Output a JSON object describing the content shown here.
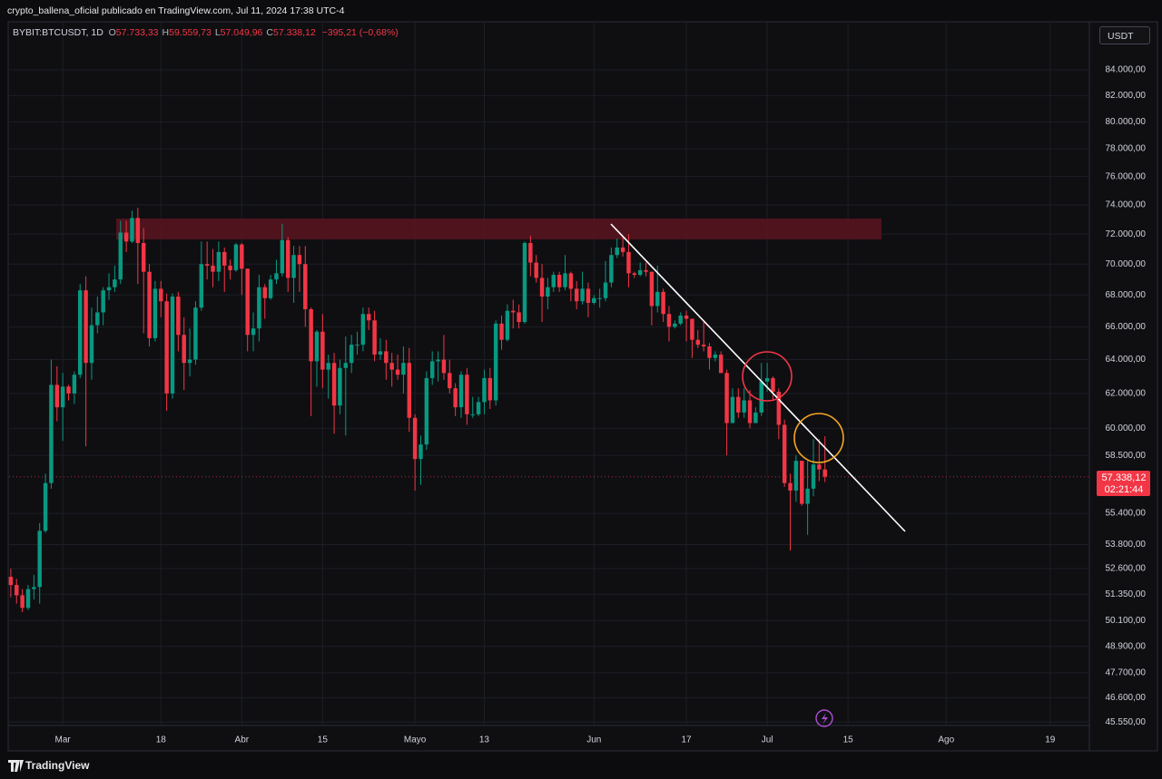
{
  "header": {
    "publisher": "crypto_ballena_oficial publicado en TradingView.com, Jul 11, 2024 17:38 UTC-4",
    "symbol": "BYBIT:BTCUSDT, 1D",
    "ohlc": [
      {
        "key": "O",
        "label": "57.733,33"
      },
      {
        "key": "H",
        "label": "59.559,73"
      },
      {
        "key": "L",
        "label": "57.049,96"
      },
      {
        "key": "C",
        "label": "57.338,12"
      }
    ],
    "change": "−395,21 (−0,68%)"
  },
  "currency": "USDT",
  "price_tag": {
    "price": "57.338,12",
    "countdown": "02:21:44"
  },
  "brand": "TradingView",
  "chart_data": {
    "type": "candlestick",
    "log_scale": true,
    "grid": true,
    "up_color": "#089981",
    "down_color": "#f23645",
    "open": [
      52200,
      51800,
      51300,
      50700,
      51600,
      51700,
      54500,
      57000,
      62500,
      61200,
      62400,
      62000,
      63100,
      68300,
      63800,
      66100,
      66900,
      68300,
      68500,
      69000,
      72100,
      71500,
      73100,
      71400,
      69500,
      65300,
      68400,
      67600,
      62000,
      67900,
      65500,
      63800,
      64000,
      67200,
      70000,
      69900,
      69500,
      70800,
      69900,
      69600,
      71300,
      69700,
      65500,
      65900,
      68500,
      67800,
      69000,
      69400,
      71600,
      69100,
      70600,
      70000,
      67100,
      63900,
      65700,
      63400,
      63800,
      61300,
      63500,
      63800,
      64900,
      64900,
      66800,
      66400,
      64300,
      64500,
      63800,
      63400,
      63100,
      63800,
      60600,
      58300,
      59100,
      62900,
      63900,
      64000,
      63200,
      62300,
      61200,
      63100,
      60800,
      60800,
      61500,
      62900,
      61600,
      66200,
      65200,
      67000,
      66900,
      66300,
      71400,
      70100,
      69100,
      67900,
      68500,
      69300,
      68500,
      69400,
      68400,
      67600,
      68400,
      67500,
      67800,
      67800,
      68800,
      70600,
      71100,
      70800,
      69400,
      69300,
      69600,
      69500,
      67300,
      68200,
      66800,
      66000,
      66200,
      66700,
      66500,
      65200,
      64900,
      64800,
      64100,
      64300,
      63200,
      60300,
      61800,
      60900,
      61600,
      60300,
      60900,
      62700,
      62900,
      62100,
      60200,
      57000,
      56600,
      58200,
      55900,
      56700,
      58000,
      57733.33
    ],
    "high": [
      52600,
      52100,
      51600,
      51800,
      52300,
      54900,
      57500,
      64000,
      63600,
      63200,
      62500,
      63300,
      68700,
      69200,
      67200,
      67900,
      68500,
      69400,
      69900,
      72900,
      72900,
      73600,
      73800,
      72400,
      70000,
      68900,
      68900,
      68100,
      68100,
      68200,
      66600,
      65900,
      67600,
      71500,
      71500,
      71000,
      71500,
      71100,
      70300,
      71400,
      71400,
      69700,
      66900,
      69300,
      68700,
      69300,
      70300,
      72700,
      71800,
      71200,
      71200,
      71200,
      67200,
      65800,
      66800,
      64300,
      64400,
      64000,
      65400,
      65500,
      65700,
      67200,
      67200,
      67000,
      65300,
      65200,
      64400,
      64300,
      64800,
      64700,
      60800,
      59600,
      63300,
      64500,
      64500,
      65500,
      64000,
      62600,
      63300,
      63500,
      61800,
      61800,
      63400,
      63500,
      66400,
      66700,
      67400,
      67700,
      67400,
      71500,
      71900,
      70600,
      70000,
      69100,
      69500,
      69500,
      70600,
      69500,
      68900,
      69500,
      68800,
      68000,
      68400,
      70200,
      71100,
      71700,
      71900,
      72000,
      69500,
      70100,
      70100,
      69500,
      69900,
      68400,
      67300,
      66400,
      66900,
      67000,
      66500,
      65800,
      66300,
      65000,
      64500,
      64500,
      63400,
      62300,
      62300,
      62300,
      62200,
      61200,
      63800,
      63800,
      63000,
      62300,
      60500,
      57500,
      58500,
      58200,
      58200,
      59400,
      59400,
      59559.73
    ],
    "low": [
      51200,
      50900,
      50500,
      50600,
      51100,
      50900,
      54400,
      56700,
      60400,
      59300,
      61600,
      61400,
      62900,
      59000,
      62800,
      65600,
      66100,
      67700,
      68200,
      68700,
      70800,
      71400,
      68700,
      65600,
      64800,
      65100,
      66600,
      61000,
      61700,
      64500,
      62200,
      63000,
      63700,
      67000,
      69000,
      68500,
      68900,
      68200,
      69000,
      69500,
      68000,
      64500,
      64500,
      65100,
      66500,
      67700,
      68700,
      69200,
      68200,
      67500,
      68200,
      66000,
      60700,
      62400,
      62300,
      61700,
      59700,
      60800,
      59600,
      63200,
      64300,
      64500,
      65800,
      63900,
      64000,
      62800,
      62400,
      62800,
      62000,
      59800,
      56600,
      56900,
      58800,
      62500,
      62700,
      62800,
      62000,
      60700,
      60600,
      60200,
      60600,
      60700,
      60800,
      61100,
      61300,
      64600,
      65100,
      65900,
      65900,
      66200,
      69200,
      68800,
      66300,
      67100,
      68200,
      68200,
      68300,
      67600,
      67100,
      67400,
      66600,
      67400,
      67200,
      67600,
      68500,
      70400,
      70500,
      68500,
      69100,
      69200,
      69200,
      66100,
      66900,
      66300,
      65100,
      65900,
      66100,
      65100,
      64100,
      64700,
      64500,
      63400,
      63900,
      63200,
      58500,
      60300,
      60600,
      60600,
      60000,
      60300,
      60700,
      62100,
      61600,
      59400,
      56800,
      53500,
      56000,
      55800,
      54300,
      56300,
      57100,
      57049.96
    ],
    "close": [
      51800,
      51300,
      50700,
      51600,
      51700,
      54500,
      57000,
      62500,
      61200,
      62400,
      62000,
      63100,
      68300,
      63800,
      66100,
      66900,
      68300,
      68500,
      69000,
      72100,
      71500,
      73100,
      71400,
      69500,
      65300,
      68400,
      67600,
      62000,
      67900,
      65500,
      63800,
      64000,
      67200,
      70000,
      69900,
      69500,
      70800,
      69900,
      69600,
      71300,
      69700,
      65500,
      65900,
      68500,
      67800,
      69000,
      69400,
      71600,
      69100,
      70600,
      70000,
      67100,
      63900,
      65700,
      63400,
      63800,
      61300,
      63500,
      63800,
      64900,
      64900,
      66800,
      66400,
      64300,
      64500,
      63800,
      63400,
      63100,
      63800,
      60600,
      58300,
      59100,
      62900,
      63900,
      64000,
      63200,
      62300,
      61200,
      63100,
      60800,
      60800,
      61500,
      62900,
      61600,
      66200,
      65200,
      67000,
      66900,
      66300,
      71400,
      70100,
      69100,
      67900,
      68500,
      69300,
      68500,
      69400,
      68400,
      67600,
      68400,
      67500,
      67800,
      67800,
      68800,
      70600,
      71100,
      70800,
      69400,
      69300,
      69600,
      69500,
      67300,
      68200,
      66800,
      66000,
      66200,
      66700,
      66500,
      65200,
      64900,
      64800,
      64100,
      64300,
      63200,
      60300,
      61800,
      60900,
      61600,
      60300,
      60900,
      62700,
      62900,
      62100,
      60200,
      57000,
      56600,
      58200,
      55900,
      56700,
      58000,
      57733.33,
      57338.12
    ],
    "xlim": [
      -0.3,
      186.8
    ],
    "xticks": [
      {
        "value": 9,
        "label": "Mar"
      },
      {
        "value": 26,
        "label": "18"
      },
      {
        "value": 40,
        "label": "Abr"
      },
      {
        "value": 54,
        "label": "15"
      },
      {
        "value": 70,
        "label": "Mayo"
      },
      {
        "value": 82,
        "label": "13"
      },
      {
        "value": 101,
        "label": "Jun"
      },
      {
        "value": 117,
        "label": "17"
      },
      {
        "value": 131,
        "label": "Jul"
      },
      {
        "value": 145,
        "label": "15"
      },
      {
        "value": 162,
        "label": "Ago"
      },
      {
        "value": 180,
        "label": "19"
      }
    ],
    "ylim": [
      45400,
      86100
    ],
    "yticks": [
      {
        "value": 84000,
        "label": "84.000,00"
      },
      {
        "value": 82000,
        "label": "82.000,00"
      },
      {
        "value": 80000,
        "label": "80.000,00"
      },
      {
        "value": 78000,
        "label": "78.000,00"
      },
      {
        "value": 76000,
        "label": "76.000,00"
      },
      {
        "value": 74000,
        "label": "74.000,00"
      },
      {
        "value": 72000,
        "label": "72.000,00"
      },
      {
        "value": 70000,
        "label": "70.000,00"
      },
      {
        "value": 68000,
        "label": "68.000,00"
      },
      {
        "value": 66000,
        "label": "66.000,00"
      },
      {
        "value": 64000,
        "label": "64.000,00"
      },
      {
        "value": 62000,
        "label": "62.000,00"
      },
      {
        "value": 60000,
        "label": "60.000,00"
      },
      {
        "value": 58500,
        "label": "58.500,00"
      },
      {
        "value": 55400,
        "label": "55.400,00"
      },
      {
        "value": 53800,
        "label": "53.800,00"
      },
      {
        "value": 52600,
        "label": "52.600,00"
      },
      {
        "value": 51350,
        "label": "51.350,00"
      },
      {
        "value": 50100,
        "label": "50.100,00"
      },
      {
        "value": 48900,
        "label": "48.900,00"
      },
      {
        "value": 47700,
        "label": "47.700,00"
      },
      {
        "value": 46600,
        "label": "46.600,00"
      },
      {
        "value": 45550,
        "label": "45.550,00"
      }
    ]
  }
}
